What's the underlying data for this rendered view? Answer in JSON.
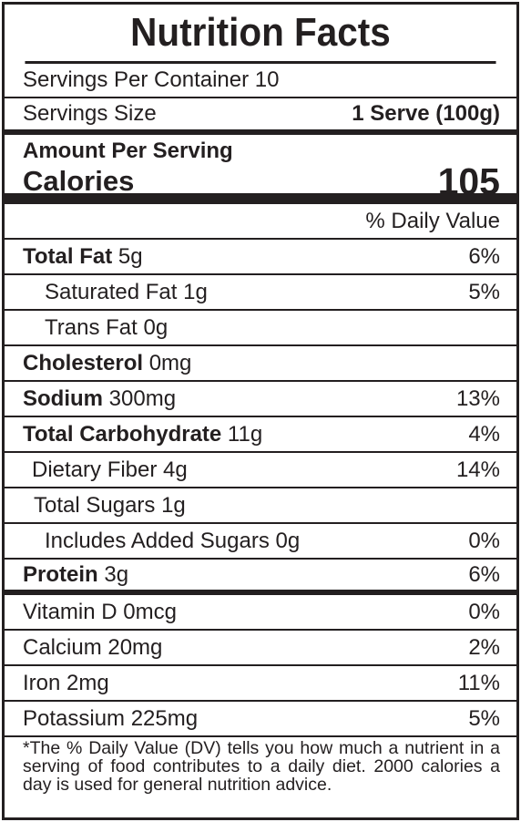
{
  "title": "Nutrition Facts",
  "servings_per_container": "Servings Per Container 10",
  "serving_size": {
    "label": "Servings Size",
    "value": "1 Serve (100g)"
  },
  "amount_per_serving": "Amount Per Serving",
  "calories": {
    "label": "Calories",
    "value": "105"
  },
  "daily_value_header": "% Daily Value",
  "nutrients": [
    {
      "name": "Total Fat",
      "amount": "5g",
      "dv": "6%"
    },
    {
      "name": "Saturated Fat",
      "amount": "1g",
      "dv": "5%"
    },
    {
      "name": "Trans Fat",
      "amount": "0g",
      "dv": ""
    },
    {
      "name": "Cholesterol",
      "amount": "0mg",
      "dv": ""
    },
    {
      "name": "Sodium",
      "amount": "300mg",
      "dv": "13%"
    },
    {
      "name": "Total Carbohydrate",
      "amount": "11g",
      "dv": "4%"
    },
    {
      "name": "Dietary Fiber",
      "amount": "4g",
      "dv": "14%"
    },
    {
      "name": "Total Sugars",
      "amount": "1g",
      "dv": ""
    },
    {
      "name": "Includes Added Sugars",
      "amount": "0g",
      "dv": "0%"
    },
    {
      "name": "Protein",
      "amount": "3g",
      "dv": "6%"
    }
  ],
  "vitamins": [
    {
      "name": "Vitamin D 0mcg",
      "dv": "0%"
    },
    {
      "name": "Calcium 20mg",
      "dv": "2%"
    },
    {
      "name": "Iron 2mg",
      "dv": "11%"
    },
    {
      "name": "Potassium 225mg",
      "dv": "5%"
    }
  ],
  "footnote": "*The % Daily Value (DV) tells you how much a nutrient in a serving of food contributes to a daily diet. 2000 calories a day is used for general nutrition advice."
}
